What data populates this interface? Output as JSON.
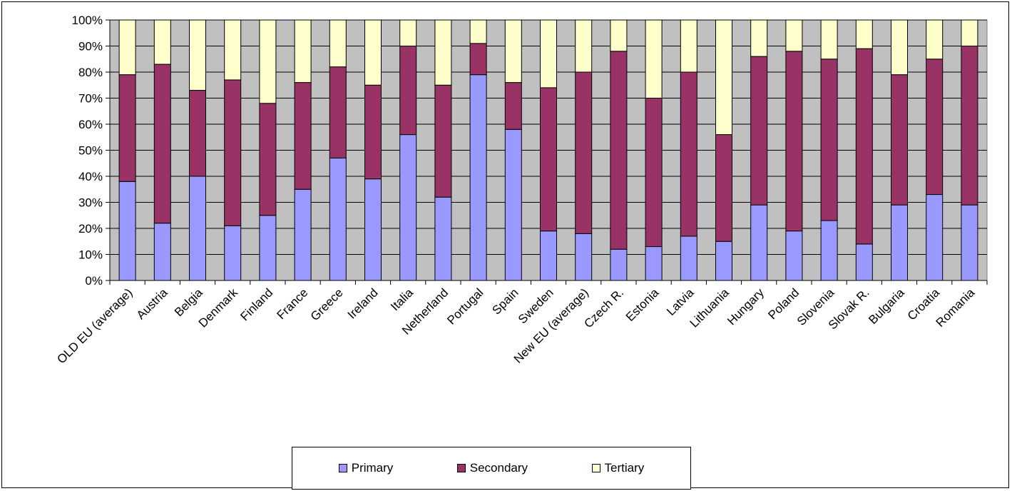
{
  "chart_data": {
    "type": "bar",
    "stacked": true,
    "percent_stacked": true,
    "categories": [
      "OLD EU (average)",
      "Austria",
      "Belgia",
      "Denmark",
      "Finland",
      "France",
      "Greece",
      "Ireland",
      "Italia",
      "Netherland",
      "Portugal",
      "Spain",
      "Sweden",
      "New EU (average)",
      "Czech R.",
      "Estonia",
      "Latvia",
      "Lithuania",
      "Hungary",
      "Poland",
      "Slovenia",
      "Slovak R.",
      "Bulgaria",
      "Croatia",
      "Romania"
    ],
    "series": [
      {
        "name": "Primary",
        "color": "#9999ff",
        "values": [
          38,
          22,
          40,
          21,
          25,
          35,
          47,
          39,
          56,
          32,
          79,
          58,
          19,
          18,
          12,
          13,
          17,
          15,
          29,
          19,
          23,
          14,
          29,
          33,
          29
        ]
      },
      {
        "name": "Secondary",
        "color": "#993366",
        "values": [
          41,
          61,
          33,
          56,
          43,
          41,
          35,
          36,
          34,
          43,
          12,
          18,
          55,
          62,
          76,
          57,
          63,
          41,
          57,
          69,
          62,
          75,
          50,
          52,
          61
        ]
      },
      {
        "name": "Tertiary",
        "color": "#ffffcc",
        "values": [
          21,
          17,
          27,
          23,
          32,
          24,
          18,
          25,
          10,
          25,
          9,
          24,
          26,
          20,
          12,
          30,
          20,
          44,
          14,
          12,
          15,
          11,
          21,
          15,
          10
        ]
      }
    ],
    "ylim": [
      0,
      100
    ],
    "y_ticks": [
      "0%",
      "10%",
      "20%",
      "30%",
      "40%",
      "50%",
      "60%",
      "70%",
      "80%",
      "90%",
      "100%"
    ],
    "grid": true,
    "plot_background": "#c0c0c0",
    "legend_position": "bottom",
    "title": "",
    "xlabel": "",
    "ylabel": ""
  }
}
